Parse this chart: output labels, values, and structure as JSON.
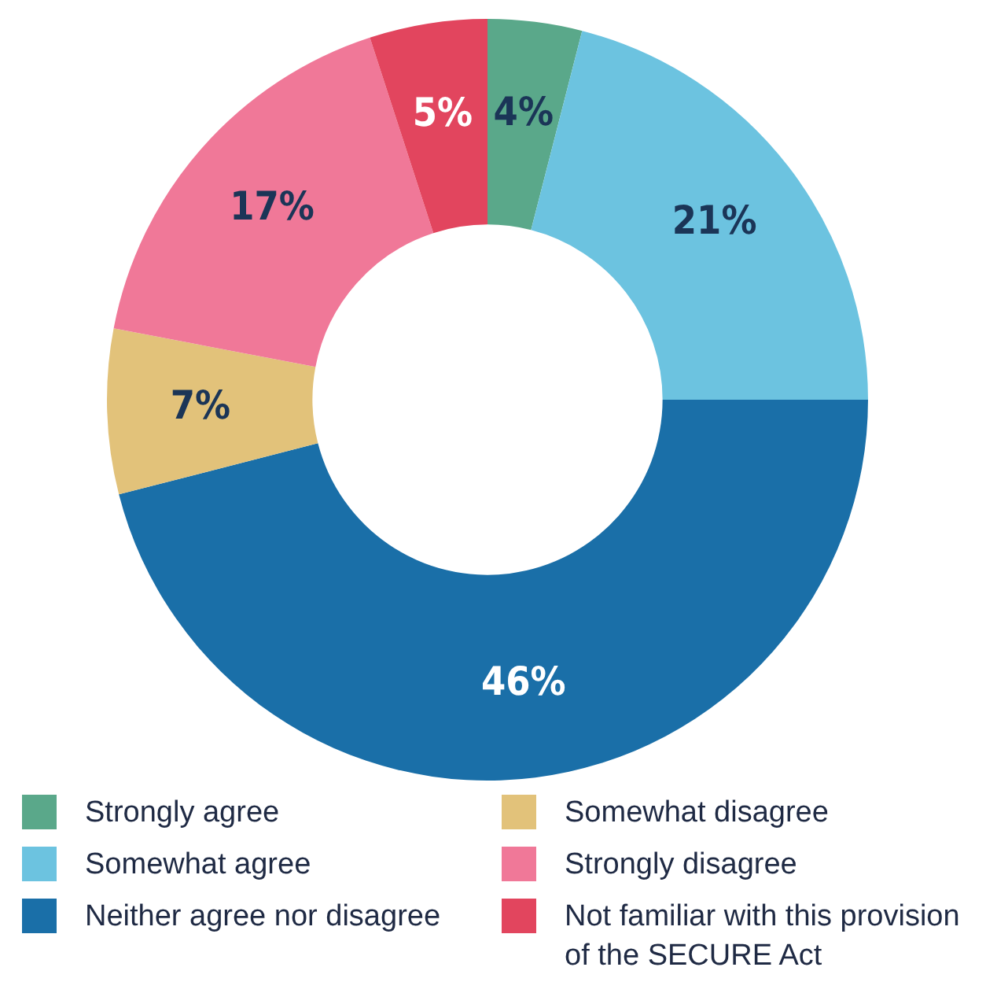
{
  "chart_data": {
    "type": "donut",
    "categories": [
      "Strongly agree",
      "Somewhat agree",
      "Neither agree nor disagree",
      "Somewhat disagree",
      "Strongly disagree",
      "Not familiar with this provision of the SECURE Act"
    ],
    "values": [
      4,
      21,
      46,
      7,
      17,
      5
    ],
    "colors": [
      "#5aa88a",
      "#6cc3e0",
      "#1a6fa8",
      "#e2c27a",
      "#f07898",
      "#e2455e"
    ],
    "value_labels": [
      "4%",
      "21%",
      "46%",
      "7%",
      "17%",
      "5%"
    ],
    "legend": "bottom"
  }
}
